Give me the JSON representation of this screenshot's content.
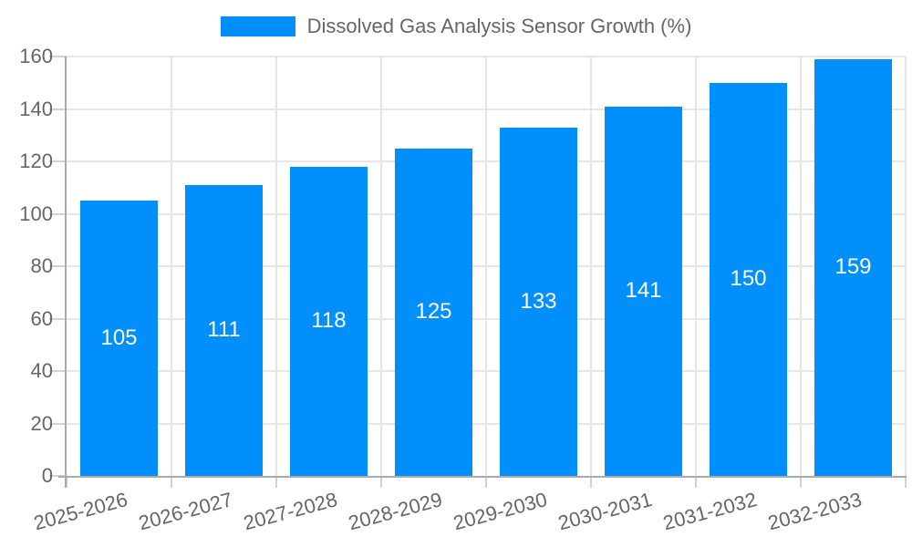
{
  "chart_data": {
    "type": "bar",
    "title": "Dissolved Gas Analysis Sensor Growth (%)",
    "categories": [
      "2025-2026",
      "2026-2027",
      "2027-2028",
      "2028-2029",
      "2029-2030",
      "2030-2031",
      "2031-2032",
      "2032-2033"
    ],
    "values": [
      105,
      111,
      118,
      125,
      133,
      141,
      150,
      159
    ],
    "xlabel": "",
    "ylabel": "",
    "ylim": [
      0,
      160
    ],
    "yticks": [
      0,
      20,
      40,
      60,
      80,
      100,
      120,
      140,
      160
    ],
    "grid": true,
    "legend_position": "top",
    "data_label_position": "center"
  },
  "colors": {
    "bar": "#008FFB",
    "bar_label": "#ffffff",
    "grid": "#e6e6e6",
    "tick_mark": "#d2d2d2",
    "axis_line": "#aaaaaa",
    "tick_label": "#666666",
    "legend_text": "#666666",
    "background": "#ffffff"
  }
}
